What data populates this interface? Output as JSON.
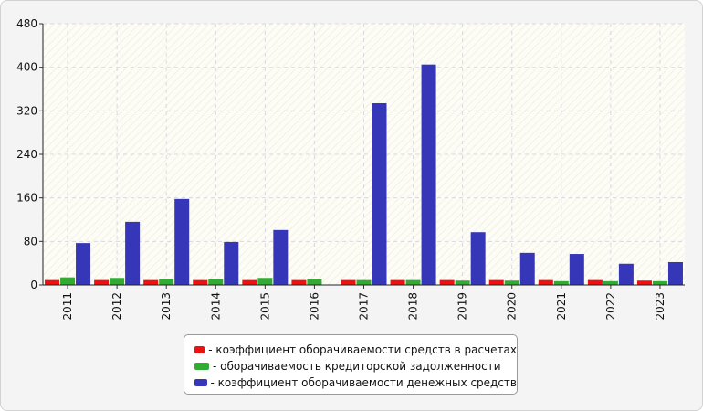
{
  "chart_data": {
    "type": "bar",
    "categories": [
      "2011",
      "2012",
      "2013",
      "2014",
      "2015",
      "2016",
      "2017",
      "2018",
      "2019",
      "2020",
      "2021",
      "2022",
      "2023"
    ],
    "series": [
      {
        "name": "- коэффициент оборачиваемости средств в расчетах",
        "color": "#ee1111",
        "values": [
          9,
          9,
          9,
          9,
          9,
          9,
          9,
          9,
          9,
          9,
          9,
          9,
          8
        ]
      },
      {
        "name": "- оборачиваемость кредиторской задолженности",
        "color": "#33aa33",
        "values": [
          14,
          13,
          11,
          11,
          13,
          11,
          9,
          9,
          8,
          8,
          7,
          7,
          7
        ]
      },
      {
        "name": "- коэффициент оборачиваемости денежных средств",
        "color": "#3636b8",
        "values": [
          77,
          116,
          158,
          79,
          101,
          0,
          334,
          405,
          97,
          59,
          57,
          39,
          42
        ]
      }
    ],
    "yticks": [
      "0",
      "80",
      "160",
      "240",
      "320",
      "400",
      "480"
    ],
    "ylim": [
      0,
      480
    ],
    "grid": true,
    "legend_position": "bottom"
  }
}
